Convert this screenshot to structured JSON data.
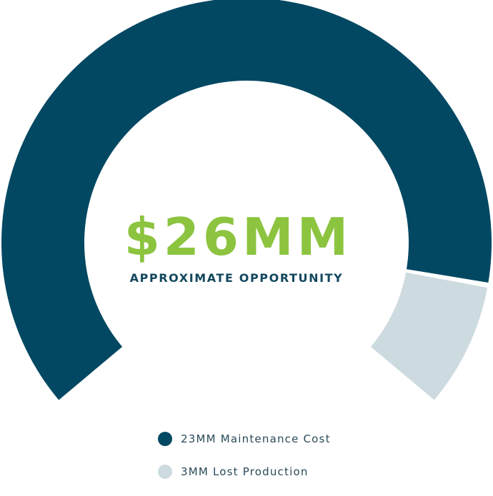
{
  "colors": {
    "maintenance": "#034862",
    "production": "#CDDBE0",
    "accent_green": "#8CC43F",
    "text_dark": "#12475E",
    "legend_text": "#2A4A5A"
  },
  "center": {
    "value": "$26MM",
    "caption": "APPROXIMATE OPPORTUNITY"
  },
  "chart_data": {
    "type": "pie",
    "style": "partial-donut gauge",
    "total_label": "$26MM",
    "categories": [
      "23MM Maintenance Cost",
      "3MM Lost Production"
    ],
    "values": [
      23,
      3
    ],
    "colors": [
      "#034862",
      "#CDDBE0"
    ],
    "legend_position": "bottom"
  },
  "legend": {
    "items": [
      {
        "label": "23MM Maintenance Cost",
        "color": "#034862"
      },
      {
        "label": "3MM Lost Production",
        "color": "#CDDBE0"
      }
    ]
  }
}
